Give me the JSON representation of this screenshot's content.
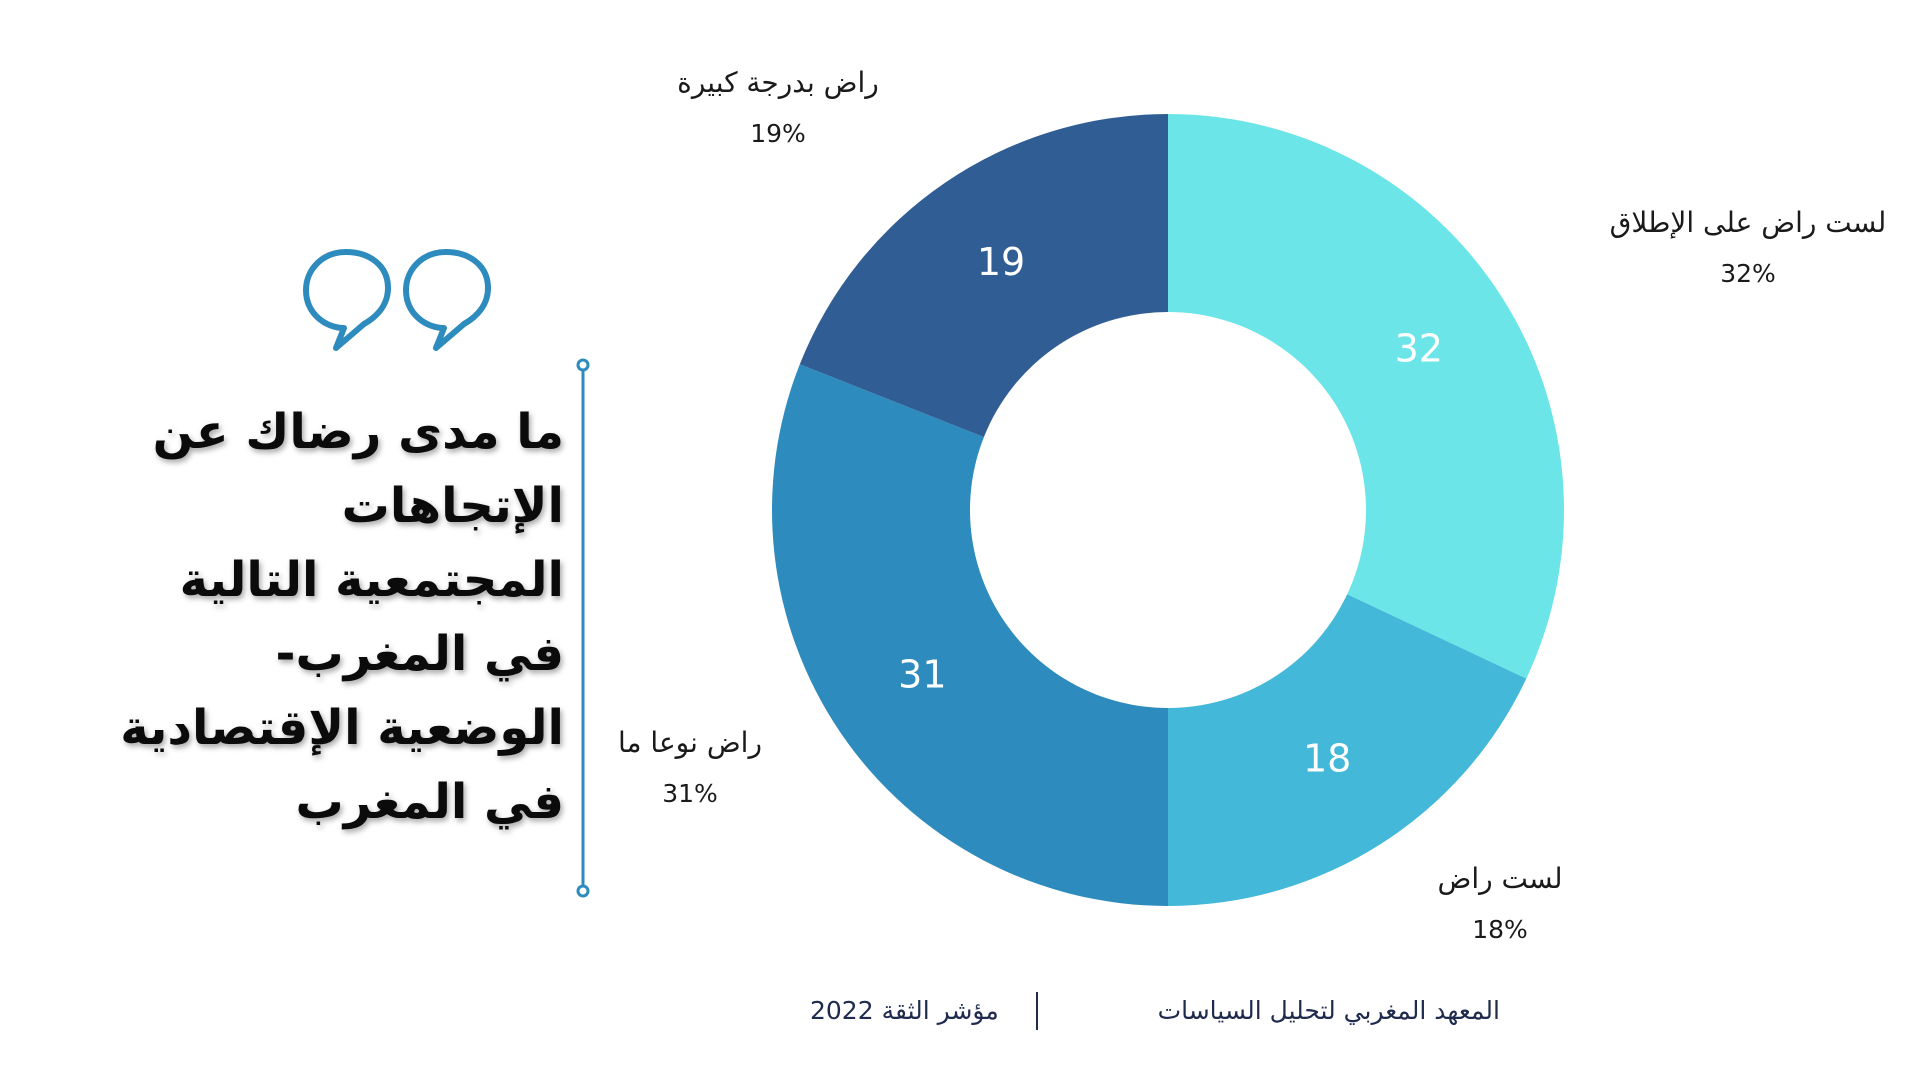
{
  "title": {
    "lines": [
      "ما مدى رضاك عن",
      "الإتجاهات",
      "المجتمعية التالية",
      "في المغرب-",
      "الوضعية الإقتصادية",
      "في المغرب"
    ]
  },
  "footer": {
    "institute": "المعهد المغربي لتحليل السياسات",
    "index": "مؤشر الثقة 2022"
  },
  "chart_data": {
    "type": "pie",
    "donut": true,
    "categories": [
      "لست راض على الإطلاق",
      "لست راض",
      "راض نوعا ما",
      "راض بدرجة كبيرة"
    ],
    "values": [
      32,
      18,
      31,
      19
    ],
    "value_labels": [
      "32",
      "18",
      "31",
      "19"
    ],
    "percent_labels": [
      "32%",
      "18%",
      "31%",
      "19%"
    ],
    "colors": [
      "#6be5e8",
      "#43b8d8",
      "#2e8bbd",
      "#2f5d94"
    ],
    "start": "top, clockwise"
  }
}
